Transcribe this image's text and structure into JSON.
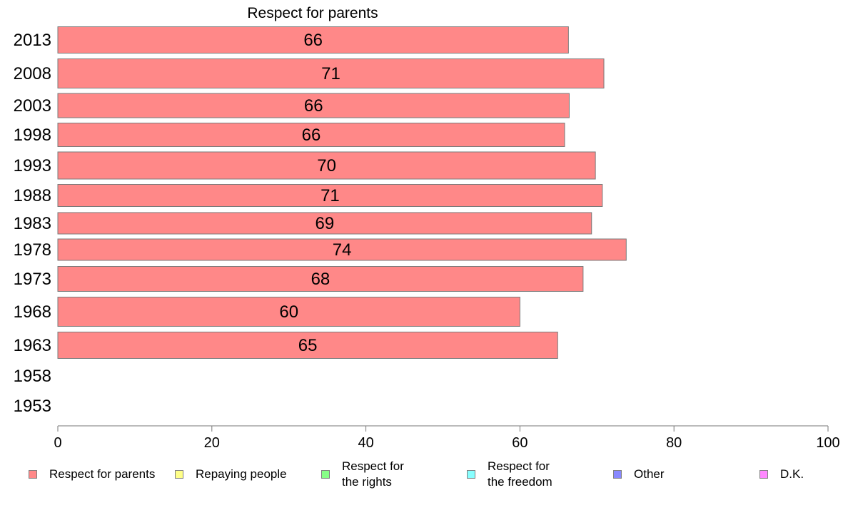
{
  "chart_data": {
    "type": "bar",
    "orientation": "horizontal",
    "title": "Respect for parents",
    "categories": [
      "2013",
      "2008",
      "2003",
      "1998",
      "1993",
      "1988",
      "1983",
      "1978",
      "1973",
      "1968",
      "1963",
      "1958",
      "1953"
    ],
    "series": [
      {
        "name": "Respect for parents",
        "color": "#ff8888",
        "values": [
          66.3,
          70.9,
          66.4,
          65.8,
          69.8,
          70.7,
          69.3,
          73.8,
          68.2,
          60.0,
          64.9,
          null,
          null
        ],
        "labels": [
          "66",
          "71",
          "66",
          "66",
          "70",
          "71",
          "69",
          "74",
          "68",
          "60",
          "65",
          "",
          ""
        ]
      }
    ],
    "xlim": [
      0,
      100
    ],
    "xticks": [
      "0",
      "20",
      "40",
      "60",
      "80",
      "100"
    ],
    "xlabel": "",
    "ylabel": "",
    "grid": false,
    "legend": {
      "placement": "bottom",
      "items": [
        {
          "label": "Respect for parents",
          "color": "#ff8888"
        },
        {
          "label": "Repaying people",
          "color": "#ffff88"
        },
        {
          "label": "Respect for\nthe rights",
          "color": "#88ff88"
        },
        {
          "label": "Respect for\nthe freedom",
          "color": "#88ffff"
        },
        {
          "label": "Other",
          "color": "#8888ff"
        },
        {
          "label": "D.K.",
          "color": "#ff88ff"
        }
      ]
    }
  }
}
